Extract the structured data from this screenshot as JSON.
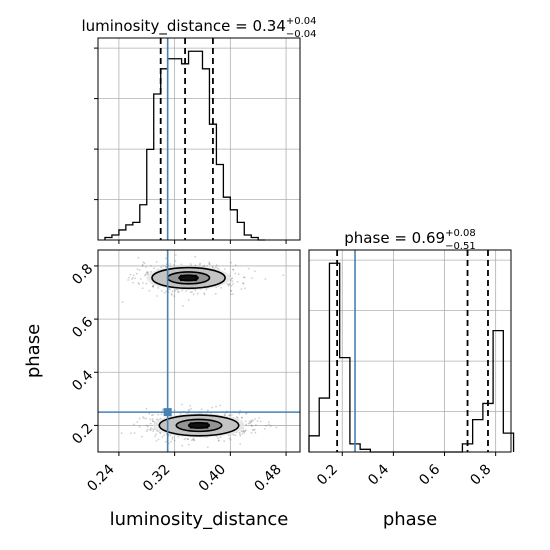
{
  "chart_data": {
    "type": "corner",
    "params": [
      "luminosity_distance",
      "phase"
    ],
    "truth": {
      "luminosity_distance": 0.31,
      "phase": 0.25
    },
    "panels": [
      {
        "id": "hist-luminosity_distance",
        "type": "histogram",
        "param": "luminosity_distance",
        "title": {
          "name": "luminosity_distance",
          "value": "0.34",
          "plus": "+0.04",
          "minus": "−0.04"
        },
        "xlim": [
          0.21,
          0.5
        ],
        "bin_edges": [
          0.22,
          0.23,
          0.24,
          0.25,
          0.26,
          0.27,
          0.28,
          0.29,
          0.3,
          0.31,
          0.32,
          0.33,
          0.34,
          0.35,
          0.36,
          0.37,
          0.38,
          0.39,
          0.4,
          0.41,
          0.42,
          0.43,
          0.44,
          0.45
        ],
        "counts": [
          1,
          2,
          4,
          6,
          7,
          14,
          36,
          58,
          68,
          72,
          72,
          70,
          75,
          75,
          68,
          46,
          30,
          17,
          12,
          7,
          2,
          1,
          0
        ],
        "quantiles": [
          0.3,
          0.335,
          0.375
        ]
      },
      {
        "id": "hist-phase",
        "type": "histogram",
        "param": "phase",
        "title": {
          "name": "phase",
          "value": "0.69",
          "plus": "+0.08",
          "minus": "−0.51"
        },
        "xlim": [
          0.07,
          0.86
        ],
        "bin_edges": [
          0.07,
          0.11,
          0.15,
          0.19,
          0.23,
          0.27,
          0.31,
          0.35,
          0.39,
          0.43,
          0.47,
          0.51,
          0.55,
          0.59,
          0.63,
          0.67,
          0.71,
          0.75,
          0.79,
          0.83,
          0.87
        ],
        "counts": [
          6,
          20,
          70,
          35,
          3,
          1,
          0,
          0,
          0,
          0,
          0,
          0,
          0,
          0,
          0,
          3,
          12,
          18,
          45,
          7
        ],
        "quantiles": [
          0.18,
          0.69,
          0.77
        ]
      },
      {
        "id": "scatter-phase-vs-luminosity_distance",
        "type": "2d-density",
        "x_param": "luminosity_distance",
        "y_param": "phase",
        "xlim": [
          0.21,
          0.5
        ],
        "ylim": [
          0.1,
          0.86
        ],
        "modes": [
          {
            "x": 0.34,
            "y": 0.755,
            "sx": 0.035,
            "sy": 0.026
          },
          {
            "x": 0.355,
            "y": 0.2,
            "sx": 0.038,
            "sy": 0.026
          }
        ],
        "contour_levels": [
          0.39,
          0.86,
          1.5
        ]
      }
    ],
    "axes": {
      "x_ticks_luminosity_distance": [
        "0.24",
        "0.32",
        "0.40",
        "0.48"
      ],
      "x_ticks_phase": [
        "0.2",
        "0.4",
        "0.6",
        "0.8"
      ],
      "y_ticks_phase": [
        "0.2",
        "0.4",
        "0.6",
        "0.8"
      ],
      "xlabel_left": "luminosity_distance",
      "xlabel_right": "phase",
      "ylabel_bottom": "phase"
    },
    "colors": {
      "truth": "#4682b4",
      "hist": "#000000",
      "density": "#000000",
      "grid": "#b0b0b0"
    },
    "grid": true
  }
}
